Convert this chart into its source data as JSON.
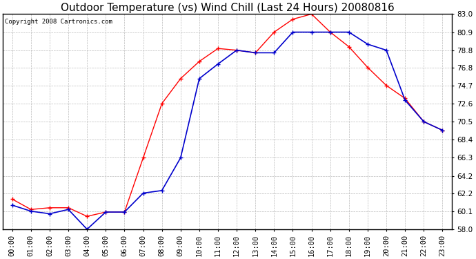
{
  "title": "Outdoor Temperature (vs) Wind Chill (Last 24 Hours) 20080816",
  "copyright": "Copyright 2008 Cartronics.com",
  "hours": [
    "00:00",
    "01:00",
    "02:00",
    "03:00",
    "04:00",
    "05:00",
    "06:00",
    "07:00",
    "08:00",
    "09:00",
    "10:00",
    "11:00",
    "12:00",
    "13:00",
    "14:00",
    "15:00",
    "16:00",
    "17:00",
    "18:00",
    "19:00",
    "20:00",
    "21:00",
    "22:00",
    "23:00"
  ],
  "temp": [
    61.5,
    60.3,
    60.5,
    60.5,
    59.5,
    60.0,
    60.0,
    66.3,
    72.6,
    75.5,
    77.5,
    79.0,
    78.8,
    78.5,
    80.9,
    82.4,
    83.0,
    80.9,
    79.2,
    76.8,
    74.7,
    73.2,
    70.5,
    69.5
  ],
  "windchill": [
    60.8,
    60.1,
    59.8,
    60.3,
    58.0,
    60.0,
    60.0,
    62.2,
    62.5,
    66.3,
    75.5,
    77.2,
    78.8,
    78.5,
    78.5,
    80.9,
    80.9,
    80.9,
    80.9,
    79.5,
    78.8,
    73.0,
    70.5,
    69.5
  ],
  "temp_color": "#ff0000",
  "windchill_color": "#0000cc",
  "bg_color": "#ffffff",
  "plot_bg_color": "#ffffff",
  "grid_color": "#bbbbbb",
  "ylim_min": 58.0,
  "ylim_max": 83.0,
  "yticks": [
    58.0,
    60.1,
    62.2,
    64.2,
    66.3,
    68.4,
    70.5,
    72.6,
    74.7,
    76.8,
    78.8,
    80.9,
    83.0
  ],
  "title_fontsize": 11,
  "copyright_fontsize": 6.5,
  "tick_fontsize": 7.5
}
